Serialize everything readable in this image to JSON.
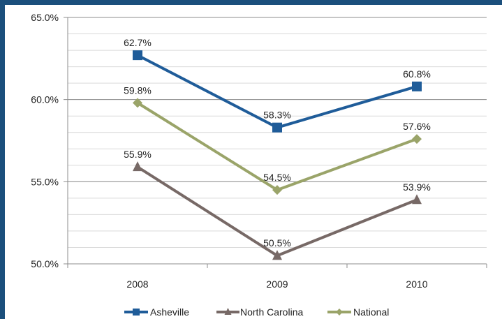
{
  "chart_data": {
    "type": "line",
    "categories": [
      "2008",
      "2009",
      "2010"
    ],
    "ylim": [
      50.0,
      65.0
    ],
    "yticks": [
      "50.0%",
      "55.0%",
      "60.0%",
      "65.0%"
    ],
    "ytick_values": [
      50,
      55,
      60,
      65
    ],
    "minor_step": 1,
    "grid": true,
    "legend": "bottom",
    "series": [
      {
        "name": "Asheville",
        "values": [
          62.7,
          58.3,
          60.8
        ],
        "labels": [
          "62.7%",
          "58.3%",
          "60.8%"
        ],
        "color": "#1f5c99",
        "marker": "square"
      },
      {
        "name": "North Carolina",
        "values": [
          55.9,
          50.5,
          53.9
        ],
        "labels": [
          "55.9%",
          "50.5%",
          "53.9%"
        ],
        "color": "#776966",
        "marker": "triangle"
      },
      {
        "name": "National",
        "values": [
          59.8,
          54.5,
          57.6
        ],
        "labels": [
          "59.8%",
          "54.5%",
          "57.6%"
        ],
        "color": "#9aa469",
        "marker": "diamond"
      }
    ]
  }
}
